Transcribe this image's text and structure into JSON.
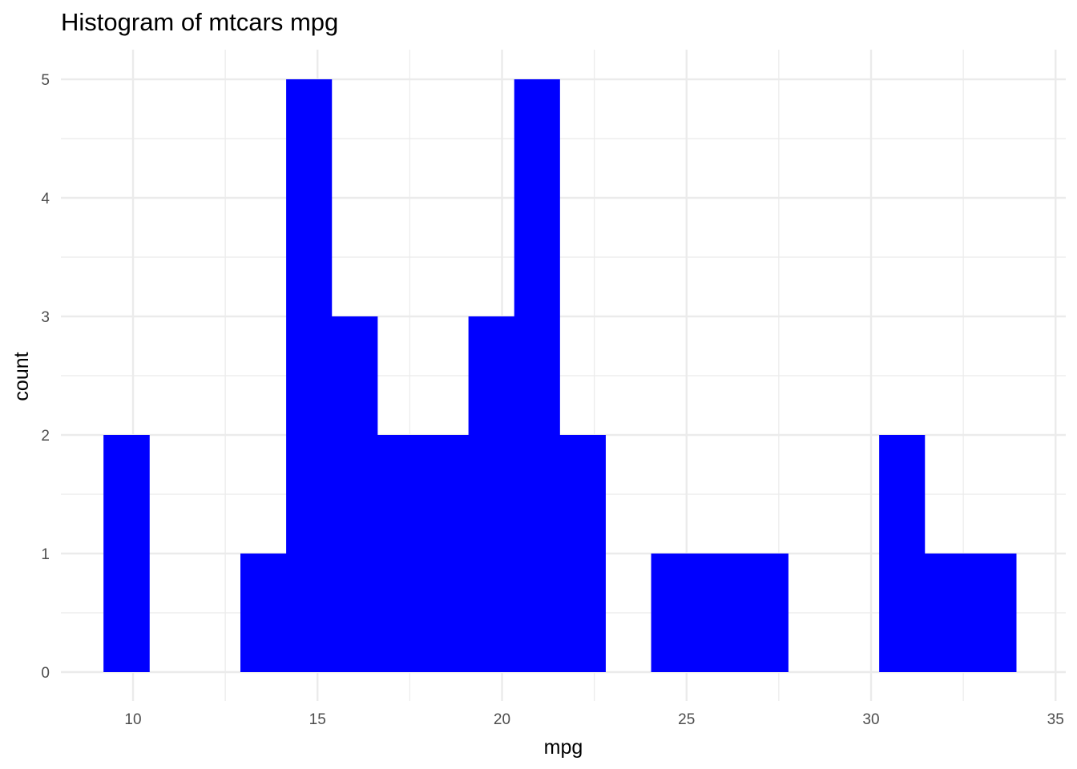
{
  "chart_data": {
    "type": "bar",
    "title": "Histogram of mtcars mpg",
    "xlabel": "mpg",
    "ylabel": "count",
    "bin_width": 1.2367,
    "bins": [
      {
        "x0": 9.2,
        "x1": 10.44,
        "count": 2
      },
      {
        "x0": 10.44,
        "x1": 11.67,
        "count": 0
      },
      {
        "x0": 11.67,
        "x1": 12.91,
        "count": 0
      },
      {
        "x0": 12.91,
        "x1": 14.15,
        "count": 1
      },
      {
        "x0": 14.15,
        "x1": 15.38,
        "count": 5
      },
      {
        "x0": 15.38,
        "x1": 16.62,
        "count": 3
      },
      {
        "x0": 16.62,
        "x1": 17.85,
        "count": 2
      },
      {
        "x0": 17.85,
        "x1": 19.09,
        "count": 2
      },
      {
        "x0": 19.09,
        "x1": 20.33,
        "count": 3
      },
      {
        "x0": 20.33,
        "x1": 21.56,
        "count": 5
      },
      {
        "x0": 21.56,
        "x1": 22.8,
        "count": 2
      },
      {
        "x0": 22.8,
        "x1": 24.04,
        "count": 0
      },
      {
        "x0": 24.04,
        "x1": 25.27,
        "count": 1
      },
      {
        "x0": 25.27,
        "x1": 26.51,
        "count": 1
      },
      {
        "x0": 26.51,
        "x1": 27.75,
        "count": 1
      },
      {
        "x0": 27.75,
        "x1": 28.98,
        "count": 0
      },
      {
        "x0": 28.98,
        "x1": 30.22,
        "count": 0
      },
      {
        "x0": 30.22,
        "x1": 31.45,
        "count": 2
      },
      {
        "x0": 31.45,
        "x1": 32.69,
        "count": 1
      },
      {
        "x0": 32.69,
        "x1": 33.93,
        "count": 1
      }
    ],
    "xticks": [
      10,
      15,
      20,
      25,
      30,
      35
    ],
    "yticks": [
      0,
      1,
      2,
      3,
      4,
      5
    ],
    "xlim": [
      8.2,
      35.2
    ],
    "ylim": [
      -0.25,
      5.25
    ],
    "grid": true,
    "bar_color": "#0000ff",
    "grid_color": "#ebebeb"
  }
}
